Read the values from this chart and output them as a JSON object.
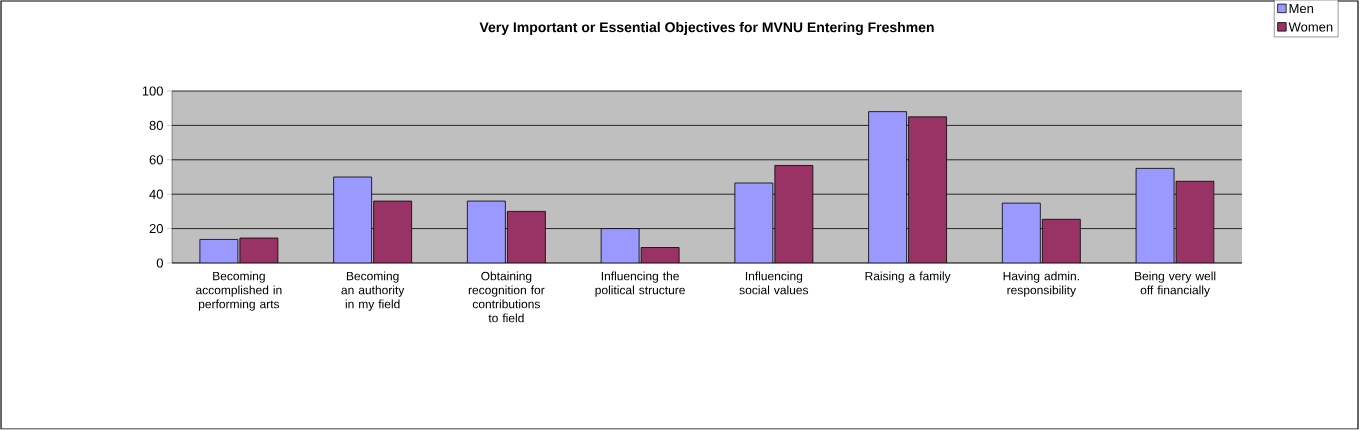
{
  "chart_data": {
    "type": "bar",
    "title": "Very Important or Essential Objectives for MVNU Entering Freshmen",
    "categories": [
      "Becoming accomplished in performing arts",
      "Becoming an authority in my field",
      "Obtaining recognition for contributions to field",
      "Influencing the political structure",
      "Influencing social values",
      "Raising a family",
      "Having admin. responsibility",
      "Being very well off financially"
    ],
    "series": [
      {
        "name": "Men",
        "color": "#9999ff",
        "values": [
          13.7,
          50,
          36,
          20,
          46.5,
          88,
          34.8,
          55
        ]
      },
      {
        "name": "Women",
        "color": "#993366",
        "values": [
          14.5,
          36,
          30,
          9,
          56.7,
          85,
          25.4,
          47.5
        ]
      }
    ],
    "ylim": [
      0,
      100
    ],
    "yticks": [
      0,
      20,
      40,
      60,
      80,
      100
    ],
    "grid": "y",
    "legend": "top right"
  }
}
